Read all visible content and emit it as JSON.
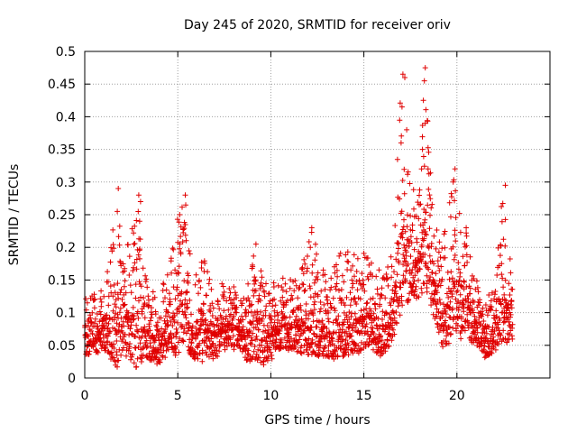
{
  "chart_data": {
    "type": "scatter",
    "title": "Day 245 of 2020, SRMTID for receiver oriv",
    "xlabel": "GPS time / hours",
    "ylabel": "SRMTID / TECUs",
    "xlim": [
      0,
      25
    ],
    "ylim": [
      0,
      0.5
    ],
    "xticks": [
      0,
      5,
      10,
      15,
      20
    ],
    "yticks": [
      0,
      0.05,
      0.1,
      0.15,
      0.2,
      0.25,
      0.3,
      0.35,
      0.4,
      0.45,
      0.5
    ],
    "ytick_labels": [
      "0",
      "0.05",
      "0.1",
      "0.15",
      "0.2",
      "0.25",
      "0.3",
      "0.35",
      "0.4",
      "0.45",
      "0.5"
    ],
    "grid": true,
    "marker": "+",
    "color": "#e00000",
    "x_range": [
      0,
      23
    ],
    "series": [
      {
        "name": "SRMTID",
        "envelope": [
          [
            0,
            0.035,
            0.12
          ],
          [
            1,
            0.04,
            0.14
          ],
          [
            1.8,
            0.015,
            0.29
          ],
          [
            2,
            0.04,
            0.18
          ],
          [
            2.9,
            0.012,
            0.28
          ],
          [
            3.2,
            0.03,
            0.16
          ],
          [
            4,
            0.02,
            0.12
          ],
          [
            4.6,
            0.04,
            0.19
          ],
          [
            5,
            0.03,
            0.25
          ],
          [
            5.4,
            0.06,
            0.28
          ],
          [
            5.8,
            0.02,
            0.15
          ],
          [
            6.3,
            0.025,
            0.19
          ],
          [
            7,
            0.03,
            0.14
          ],
          [
            7.8,
            0.05,
            0.15
          ],
          [
            8.5,
            0.03,
            0.13
          ],
          [
            9.2,
            0.02,
            0.2
          ],
          [
            9.8,
            0.02,
            0.14
          ],
          [
            10.5,
            0.04,
            0.16
          ],
          [
            11.5,
            0.04,
            0.15
          ],
          [
            12.2,
            0.03,
            0.23
          ],
          [
            13,
            0.02,
            0.15
          ],
          [
            13.6,
            0.03,
            0.19
          ],
          [
            14.5,
            0.03,
            0.2
          ],
          [
            15.2,
            0.05,
            0.19
          ],
          [
            16,
            0.03,
            0.16
          ],
          [
            16.6,
            0.06,
            0.2
          ],
          [
            17,
            0.1,
            0.46
          ],
          [
            17.5,
            0.12,
            0.29
          ],
          [
            18,
            0.12,
            0.3
          ],
          [
            18.3,
            0.14,
            0.475
          ],
          [
            18.7,
            0.1,
            0.25
          ],
          [
            19.2,
            0.04,
            0.2
          ],
          [
            19.8,
            0.06,
            0.32
          ],
          [
            20.5,
            0.06,
            0.23
          ],
          [
            21,
            0.05,
            0.16
          ],
          [
            21.5,
            0.03,
            0.12
          ],
          [
            22,
            0.04,
            0.14
          ],
          [
            22.5,
            0.05,
            0.3
          ],
          [
            23,
            0.06,
            0.14
          ]
        ],
        "outliers": [
          [
            1.8,
            0.29
          ],
          [
            2.9,
            0.28
          ],
          [
            3.0,
            0.27
          ],
          [
            5.4,
            0.28
          ],
          [
            5.1,
            0.25
          ],
          [
            12.2,
            0.23
          ],
          [
            9.2,
            0.205
          ],
          [
            17.1,
            0.465
          ],
          [
            17.2,
            0.46
          ],
          [
            17.05,
            0.415
          ],
          [
            17.3,
            0.38
          ],
          [
            17.0,
            0.36
          ],
          [
            18.3,
            0.475
          ],
          [
            18.25,
            0.455
          ],
          [
            18.2,
            0.425
          ],
          [
            18.3,
            0.39
          ],
          [
            18.15,
            0.35
          ],
          [
            18.1,
            0.32
          ],
          [
            18.45,
            0.32
          ],
          [
            19.9,
            0.32
          ],
          [
            19.8,
            0.3
          ],
          [
            22.6,
            0.295
          ],
          [
            1.75,
            0.255
          ],
          [
            2.95,
            0.24
          ],
          [
            20.5,
            0.23
          ]
        ]
      }
    ]
  }
}
